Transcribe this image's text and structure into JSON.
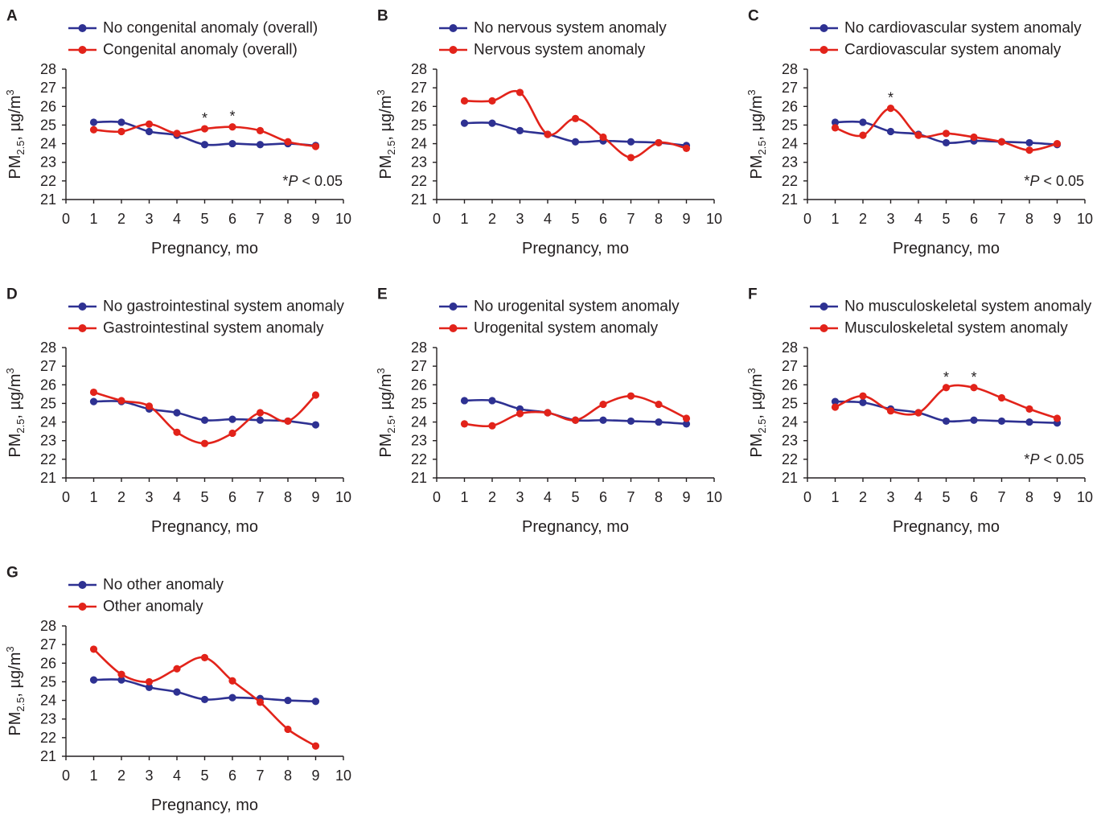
{
  "figure": {
    "axis_color": "#231F20"
  },
  "chart_data": [
    {
      "panel": "A",
      "type": "line",
      "legend": "top-left",
      "grid": false,
      "xlabel": "Pregnancy, mo",
      "ylabel": {
        "base": "PM",
        "sub": "2.5",
        "mid": ", µg/m",
        "sup": "3"
      },
      "xlim": [
        0,
        10
      ],
      "ylim": [
        21,
        28
      ],
      "xticks": [
        0,
        1,
        2,
        3,
        4,
        5,
        6,
        7,
        8,
        9,
        10
      ],
      "yticks": [
        21,
        22,
        23,
        24,
        25,
        26,
        27,
        28
      ],
      "x": [
        1,
        2,
        3,
        4,
        5,
        6,
        7,
        8,
        9
      ],
      "series": [
        {
          "name": "No congenital anomaly (overall)",
          "color": "#2E3192",
          "values": [
            25.15,
            25.15,
            24.65,
            24.45,
            23.95,
            24.0,
            23.95,
            24.0,
            23.9
          ]
        },
        {
          "name": "Congenital anomaly (overall)",
          "color": "#E2231A",
          "values": [
            24.75,
            24.65,
            25.05,
            24.55,
            24.8,
            24.9,
            24.7,
            24.1,
            23.85
          ]
        }
      ],
      "significance": {
        "mark": "*",
        "months": [
          5,
          6
        ],
        "note": {
          "mark": "*",
          "italic": "P",
          "rest": " < 0.05"
        }
      }
    },
    {
      "panel": "B",
      "type": "line",
      "legend": "top-left",
      "grid": false,
      "xlabel": "Pregnancy, mo",
      "ylabel": {
        "base": "PM",
        "sub": "2.5",
        "mid": ", µg/m",
        "sup": "3"
      },
      "xlim": [
        0,
        10
      ],
      "ylim": [
        21,
        28
      ],
      "xticks": [
        0,
        1,
        2,
        3,
        4,
        5,
        6,
        7,
        8,
        9,
        10
      ],
      "yticks": [
        21,
        22,
        23,
        24,
        25,
        26,
        27,
        28
      ],
      "x": [
        1,
        2,
        3,
        4,
        5,
        6,
        7,
        8,
        9
      ],
      "series": [
        {
          "name": "No nervous system anomaly",
          "color": "#2E3192",
          "values": [
            25.1,
            25.1,
            24.7,
            24.5,
            24.1,
            24.15,
            24.1,
            24.05,
            23.9
          ]
        },
        {
          "name": "Nervous system anomaly",
          "color": "#E2231A",
          "values": [
            26.3,
            26.3,
            26.75,
            24.5,
            25.35,
            24.35,
            23.25,
            24.05,
            23.75
          ]
        }
      ]
    },
    {
      "panel": "C",
      "type": "line",
      "legend": "top-left",
      "grid": false,
      "xlabel": "Pregnancy, mo",
      "ylabel": {
        "base": "PM",
        "sub": "2.5",
        "mid": ", µg/m",
        "sup": "3"
      },
      "xlim": [
        0,
        10
      ],
      "ylim": [
        21,
        28
      ],
      "xticks": [
        0,
        1,
        2,
        3,
        4,
        5,
        6,
        7,
        8,
        9,
        10
      ],
      "yticks": [
        21,
        22,
        23,
        24,
        25,
        26,
        27,
        28
      ],
      "x": [
        1,
        2,
        3,
        4,
        5,
        6,
        7,
        8,
        9
      ],
      "series": [
        {
          "name": "No cardiovascular system anomaly",
          "color": "#2E3192",
          "values": [
            25.15,
            25.15,
            24.65,
            24.5,
            24.05,
            24.15,
            24.1,
            24.05,
            23.95
          ]
        },
        {
          "name": "Cardiovascular system anomaly",
          "color": "#E2231A",
          "values": [
            24.85,
            24.45,
            25.9,
            24.45,
            24.55,
            24.35,
            24.1,
            23.65,
            24.0
          ]
        }
      ],
      "significance": {
        "mark": "*",
        "months": [
          3
        ],
        "note": {
          "mark": "*",
          "italic": "P",
          "rest": " < 0.05"
        }
      }
    },
    {
      "panel": "D",
      "type": "line",
      "legend": "top-left",
      "grid": false,
      "xlabel": "Pregnancy, mo",
      "ylabel": {
        "base": "PM",
        "sub": "2.5",
        "mid": ", µg/m",
        "sup": "3"
      },
      "xlim": [
        0,
        10
      ],
      "ylim": [
        21,
        28
      ],
      "xticks": [
        0,
        1,
        2,
        3,
        4,
        5,
        6,
        7,
        8,
        9,
        10
      ],
      "yticks": [
        21,
        22,
        23,
        24,
        25,
        26,
        27,
        28
      ],
      "x": [
        1,
        2,
        3,
        4,
        5,
        6,
        7,
        8,
        9
      ],
      "series": [
        {
          "name": "No gastrointestinal system anomaly",
          "color": "#2E3192",
          "values": [
            25.1,
            25.1,
            24.7,
            24.5,
            24.1,
            24.15,
            24.1,
            24.05,
            23.85
          ]
        },
        {
          "name": "Gastrointestinal system anomaly",
          "color": "#E2231A",
          "values": [
            25.6,
            25.15,
            24.85,
            23.45,
            22.85,
            23.4,
            24.5,
            24.05,
            25.45
          ]
        }
      ]
    },
    {
      "panel": "E",
      "type": "line",
      "legend": "top-left",
      "grid": false,
      "xlabel": "Pregnancy, mo",
      "ylabel": {
        "base": "PM",
        "sub": "2.5",
        "mid": ", µg/m",
        "sup": "3"
      },
      "xlim": [
        0,
        10
      ],
      "ylim": [
        21,
        28
      ],
      "xticks": [
        0,
        1,
        2,
        3,
        4,
        5,
        6,
        7,
        8,
        9,
        10
      ],
      "yticks": [
        21,
        22,
        23,
        24,
        25,
        26,
        27,
        28
      ],
      "x": [
        1,
        2,
        3,
        4,
        5,
        6,
        7,
        8,
        9
      ],
      "series": [
        {
          "name": "No urogenital system anomaly",
          "color": "#2E3192",
          "values": [
            25.15,
            25.15,
            24.7,
            24.5,
            24.1,
            24.1,
            24.05,
            24.0,
            23.9
          ]
        },
        {
          "name": "Urogenital system anomaly",
          "color": "#E2231A",
          "values": [
            23.9,
            23.8,
            24.45,
            24.5,
            24.1,
            24.95,
            25.4,
            24.95,
            24.2
          ]
        }
      ]
    },
    {
      "panel": "F",
      "type": "line",
      "legend": "top-left",
      "grid": false,
      "xlabel": "Pregnancy, mo",
      "ylabel": {
        "base": "PM",
        "sub": "2.5",
        "mid": ", µg/m",
        "sup": "3"
      },
      "xlim": [
        0,
        10
      ],
      "ylim": [
        21,
        28
      ],
      "xticks": [
        0,
        1,
        2,
        3,
        4,
        5,
        6,
        7,
        8,
        9,
        10
      ],
      "yticks": [
        21,
        22,
        23,
        24,
        25,
        26,
        27,
        28
      ],
      "x": [
        1,
        2,
        3,
        4,
        5,
        6,
        7,
        8,
        9
      ],
      "series": [
        {
          "name": "No musculoskeletal system anomaly",
          "color": "#2E3192",
          "values": [
            25.1,
            25.05,
            24.7,
            24.5,
            24.05,
            24.1,
            24.05,
            24.0,
            23.95
          ]
        },
        {
          "name": "Musculoskeletal system anomaly",
          "color": "#E2231A",
          "values": [
            24.8,
            25.4,
            24.6,
            24.5,
            25.85,
            25.85,
            25.3,
            24.7,
            24.2
          ]
        }
      ],
      "significance": {
        "mark": "*",
        "months": [
          5,
          6
        ],
        "note": {
          "mark": "*",
          "italic": "P",
          "rest": " < 0.05"
        }
      }
    },
    {
      "panel": "G",
      "type": "line",
      "legend": "top-left",
      "grid": false,
      "xlabel": "Pregnancy, mo",
      "ylabel": {
        "base": "PM",
        "sub": "2.5",
        "mid": ", µg/m",
        "sup": "3"
      },
      "xlim": [
        0,
        10
      ],
      "ylim": [
        21,
        28
      ],
      "xticks": [
        0,
        1,
        2,
        3,
        4,
        5,
        6,
        7,
        8,
        9,
        10
      ],
      "yticks": [
        21,
        22,
        23,
        24,
        25,
        26,
        27,
        28
      ],
      "x": [
        1,
        2,
        3,
        4,
        5,
        6,
        7,
        8,
        9
      ],
      "series": [
        {
          "name": "No other anomaly",
          "color": "#2E3192",
          "values": [
            25.1,
            25.1,
            24.7,
            24.45,
            24.05,
            24.15,
            24.1,
            24.0,
            23.95
          ]
        },
        {
          "name": "Other anomaly",
          "color": "#E2231A",
          "values": [
            26.75,
            25.4,
            25.0,
            25.7,
            26.3,
            25.05,
            23.9,
            22.45,
            21.55
          ]
        }
      ]
    }
  ]
}
